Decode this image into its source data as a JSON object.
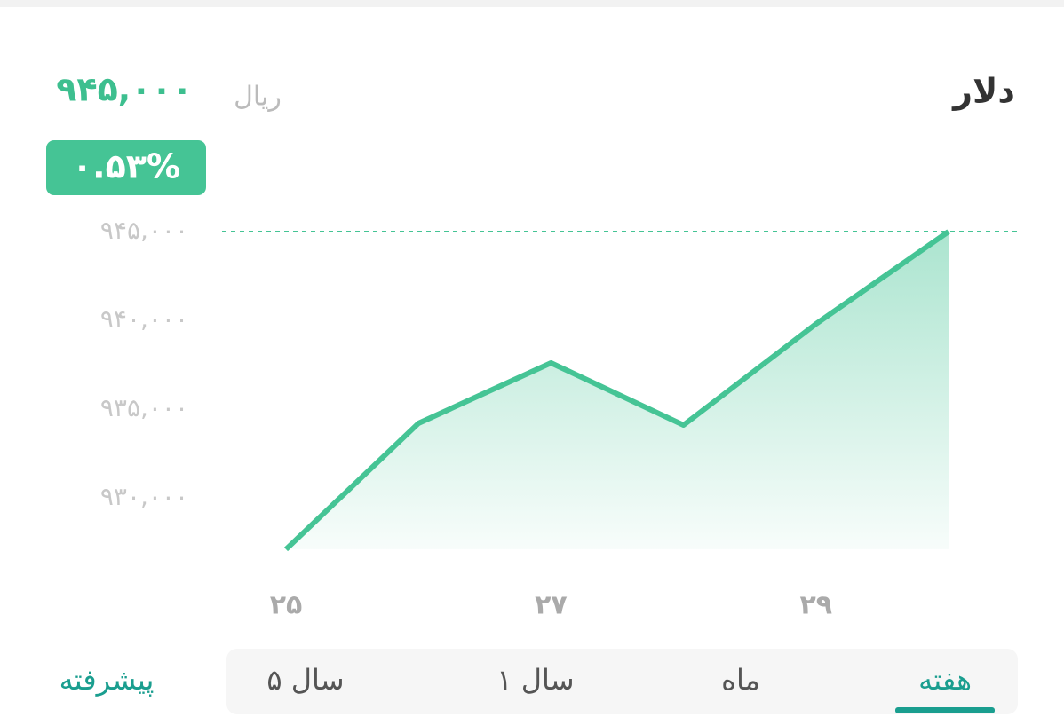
{
  "header": {
    "title": "دلار",
    "unit": "ریال",
    "price": "۹۴۵,۰۰۰",
    "change": "۰.۵۳%"
  },
  "chart_data": {
    "type": "area",
    "categories": [
      "۲۵",
      null,
      "۲۷",
      null,
      "۲۹",
      null
    ],
    "values": [
      927100,
      934200,
      937600,
      934100,
      939800,
      945000
    ],
    "color": "#45c495",
    "ylim": [
      926500,
      946500
    ],
    "yticks": [
      {
        "value": 930000,
        "label": "۹۳۰,۰۰۰"
      },
      {
        "value": 935000,
        "label": "۹۳۵,۰۰۰"
      },
      {
        "value": 940000,
        "label": "۹۴۰,۰۰۰"
      },
      {
        "value": 945000,
        "label": "۹۴۵,۰۰۰"
      }
    ],
    "grid": false
  },
  "tabs": {
    "items": [
      "هفته",
      "ماه",
      "سال ۱",
      "سال ۵"
    ],
    "selected": "هفته",
    "advanced": "پیشرفته"
  }
}
